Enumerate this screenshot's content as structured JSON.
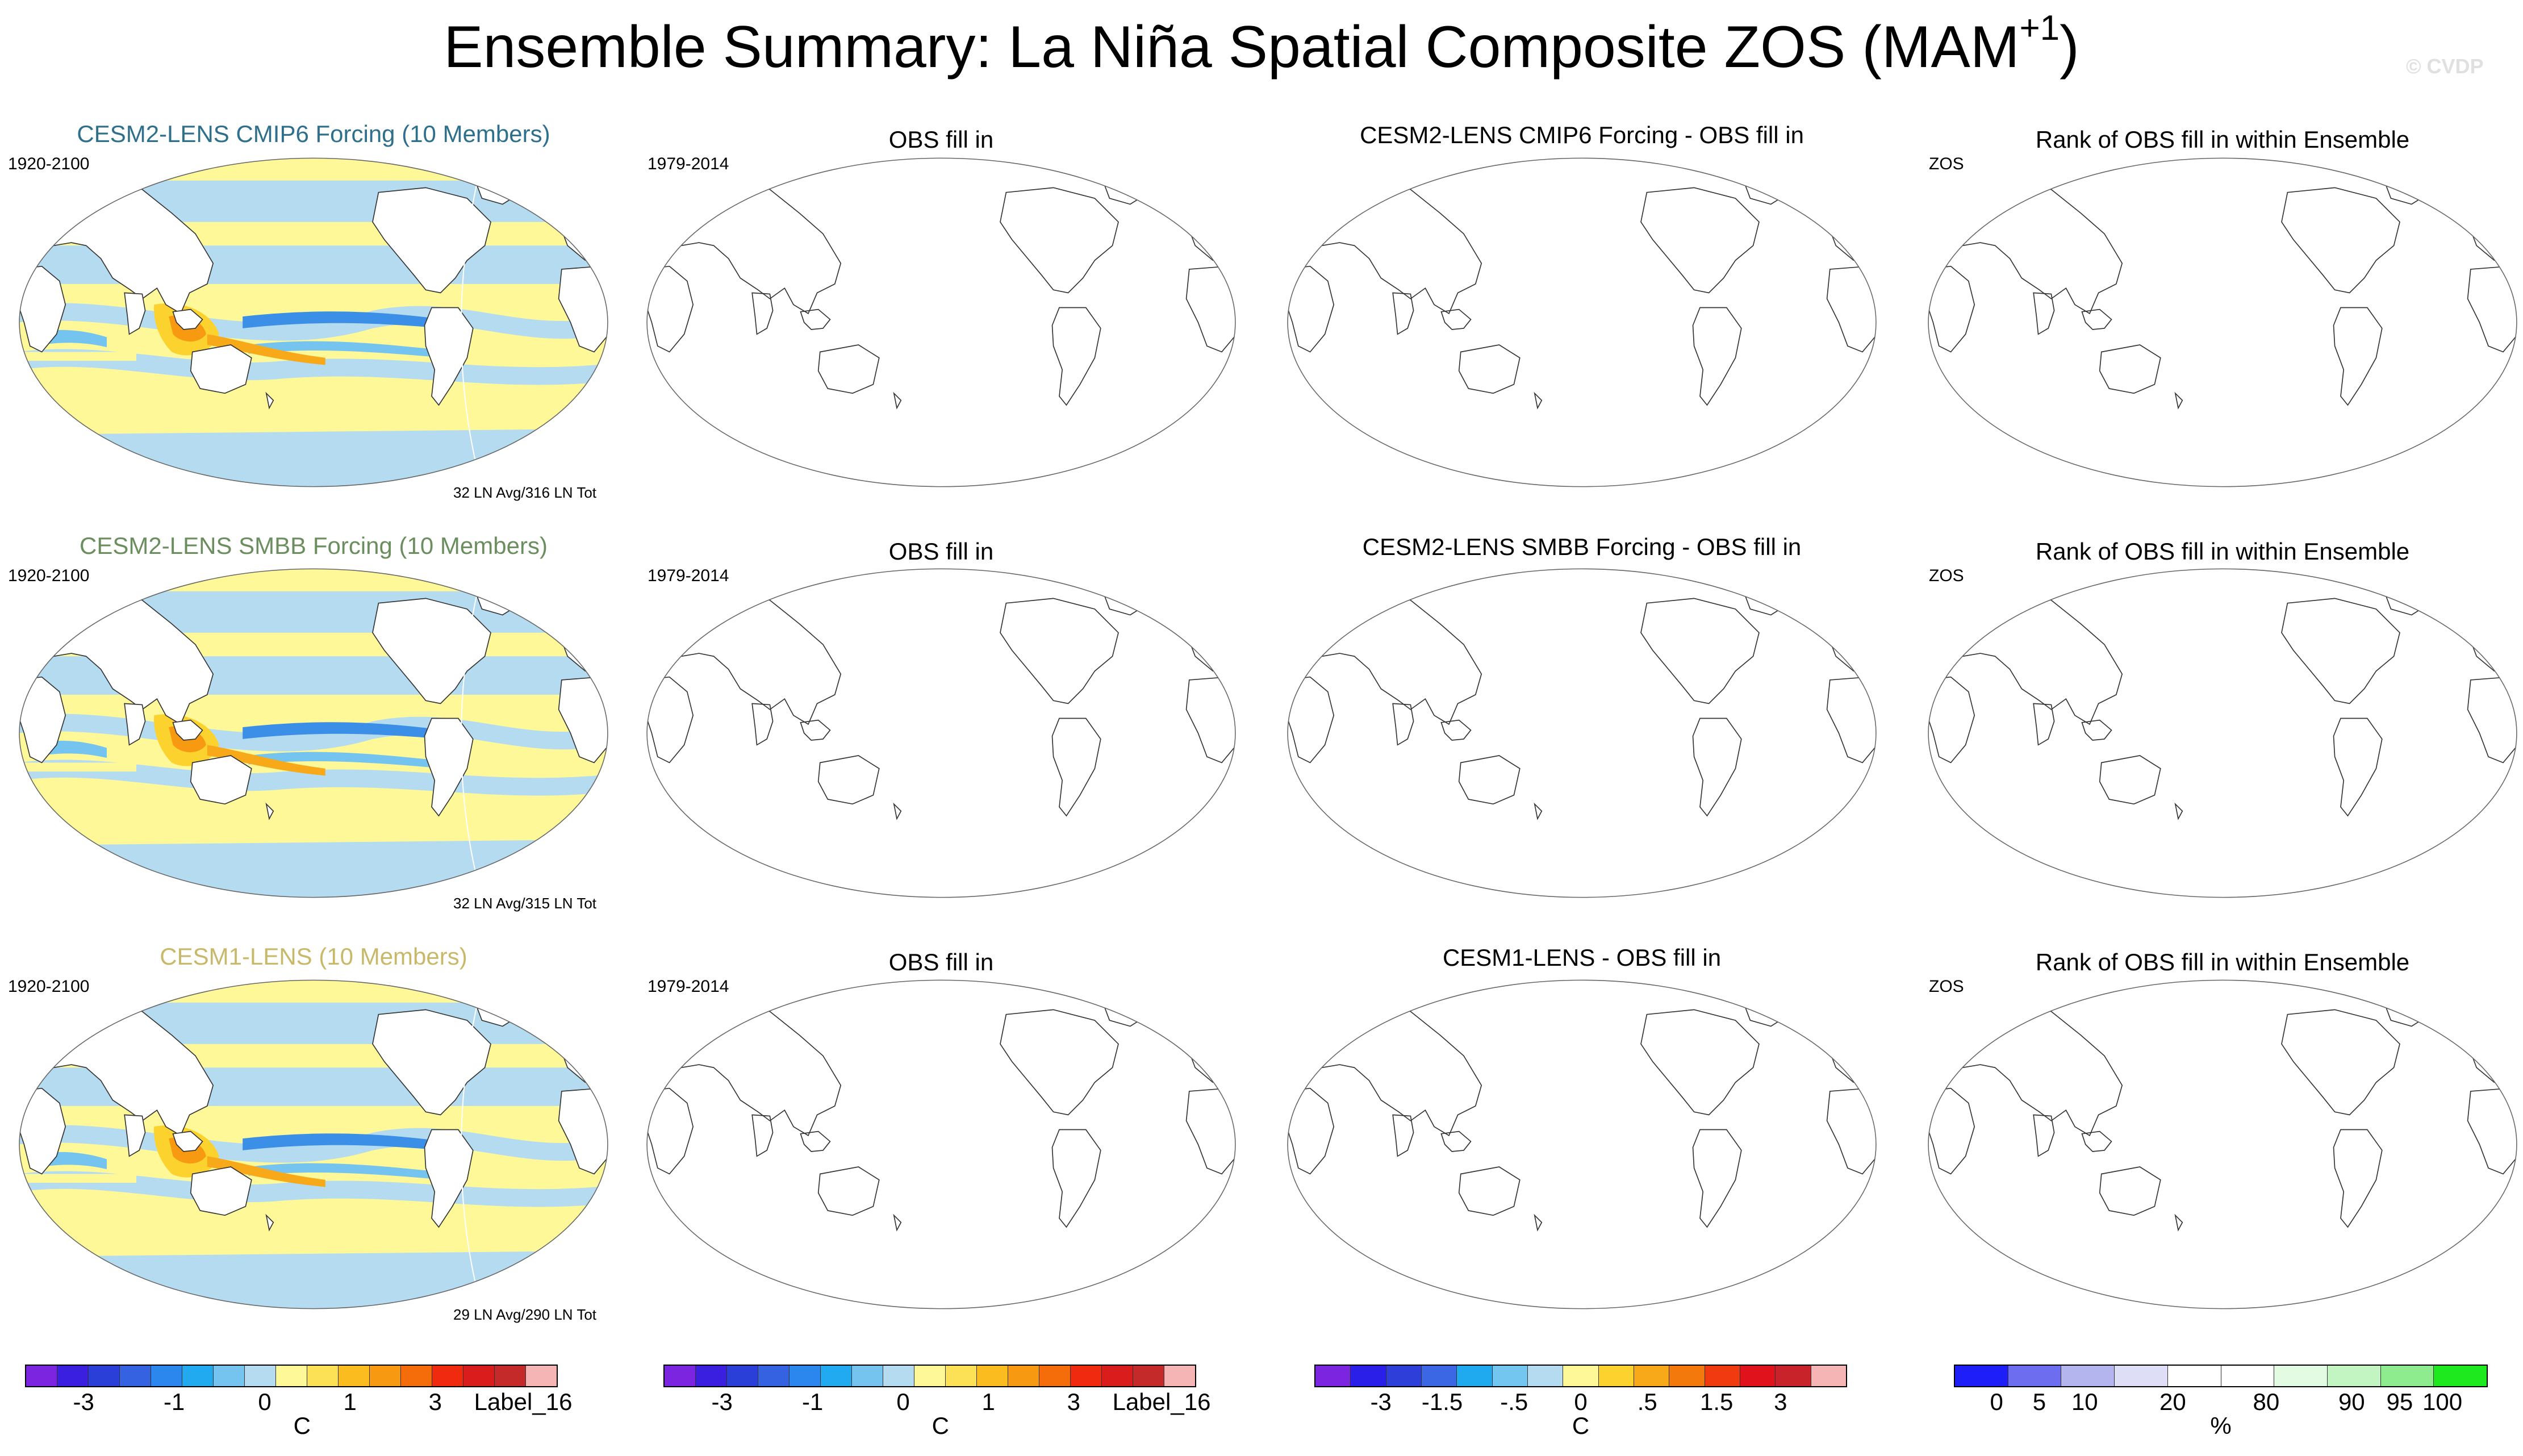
{
  "title": {
    "main": "Ensemble Summary: La Niña Spatial Composite ZOS (MAM",
    "sup": "+1",
    "close": ")"
  },
  "watermark": "© CVDP",
  "rows": [
    {
      "model_title": "CESM2-LENS CMIP6 Forcing (10 Members)",
      "model_color": "#2e6f8c",
      "model_years": "1920-2100",
      "model_count": "32 LN Avg/316 LN Tot",
      "obs_title": "OBS fill in",
      "obs_years": "1979-2014",
      "diff_title": "CESM2-LENS CMIP6 Forcing - OBS fill in",
      "rank_title": "Rank of OBS fill in within Ensemble",
      "rank_var": "ZOS"
    },
    {
      "model_title": "CESM2-LENS SMBB Forcing (10 Members)",
      "model_color": "#6b8e5e",
      "model_years": "1920-2100",
      "model_count": "32 LN Avg/315 LN Tot",
      "obs_title": "OBS fill in",
      "obs_years": "1979-2014",
      "diff_title": "CESM2-LENS SMBB Forcing - OBS fill in",
      "rank_title": "Rank of OBS fill in within Ensemble",
      "rank_var": "ZOS"
    },
    {
      "model_title": "CESM1-LENS (10 Members)",
      "model_color": "#c8b96a",
      "model_years": "1920-2100",
      "model_count": "29 LN Avg/290 LN Tot",
      "obs_title": "OBS fill in",
      "obs_years": "1979-2014",
      "diff_title": "CESM1-LENS - OBS fill in",
      "rank_title": "Rank of OBS fill in within Ensemble",
      "rank_var": "ZOS"
    }
  ],
  "colorbars": {
    "main": {
      "colors": [
        "#7b25e0",
        "#3a1fe0",
        "#2a3fd8",
        "#3562e0",
        "#2b86ee",
        "#22aaf0",
        "#74c4ef",
        "#b4dbef",
        "#fff899",
        "#fce055",
        "#fbbc20",
        "#f79a12",
        "#f46d0a",
        "#ef2a0e",
        "#d91c1c",
        "#c42a2a",
        "#f5b5b5"
      ],
      "ticks": [
        "-3",
        "-1",
        "0",
        "1",
        "3",
        "Label_16"
      ],
      "unit": "C"
    },
    "obs": {
      "colors": [
        "#7b25e0",
        "#3a1fe0",
        "#2a3fd8",
        "#3562e0",
        "#2b86ee",
        "#22aaf0",
        "#74c4ef",
        "#b4dbef",
        "#fff899",
        "#fce055",
        "#fbbc20",
        "#f79a12",
        "#f46d0a",
        "#ef2a0e",
        "#d91c1c",
        "#c42a2a",
        "#f5b5b5"
      ],
      "ticks": [
        "-3",
        "-1",
        "0",
        "1",
        "3",
        "Label_16"
      ],
      "unit": "C"
    },
    "diff": {
      "colors": [
        "#7b25e0",
        "#2a1fe8",
        "#2d3fd8",
        "#3b66e4",
        "#1fa9ef",
        "#72c6ef",
        "#b4dbef",
        "#fff899",
        "#fcd22e",
        "#f8a91a",
        "#f4790c",
        "#ef3b0f",
        "#e0121b",
        "#c8232b",
        "#f5b5b5"
      ],
      "ticks": [
        "-3",
        "-1.5",
        "-.5",
        "0",
        ".5",
        "1.5",
        "3"
      ],
      "unit": "C"
    },
    "rank": {
      "colors": [
        "#1e1ef8",
        "#6d6df0",
        "#b4b4ee",
        "#dedef6",
        "#ffffff",
        "#ffffff",
        "#e3fbe3",
        "#c2f5c2",
        "#8eec8e",
        "#1ee81e"
      ],
      "ticks": [
        "0",
        "5",
        "10",
        "20",
        "80",
        "90",
        "95",
        "100"
      ],
      "unit": "%"
    }
  }
}
